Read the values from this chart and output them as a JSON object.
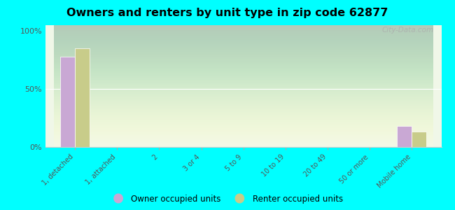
{
  "title": "Owners and renters by unit type in zip code 62877",
  "categories": [
    "1, detached",
    "1, attached",
    "2",
    "3 or 4",
    "5 to 9",
    "10 to 19",
    "20 to 49",
    "50 or more",
    "Mobile home"
  ],
  "owner_values": [
    78,
    0,
    0,
    0,
    0,
    0,
    0,
    0,
    18
  ],
  "renter_values": [
    85,
    0,
    0,
    0,
    0,
    0,
    0,
    0,
    13
  ],
  "owner_color": "#c9a8d4",
  "renter_color": "#c8cc8a",
  "background_color": "#00ffff",
  "bar_width": 0.35,
  "legend_owner": "Owner occupied units",
  "legend_renter": "Renter occupied units",
  "watermark": "City-Data.com",
  "ylim": [
    0,
    105
  ],
  "ylabel_ticks": [
    0,
    50,
    100
  ]
}
